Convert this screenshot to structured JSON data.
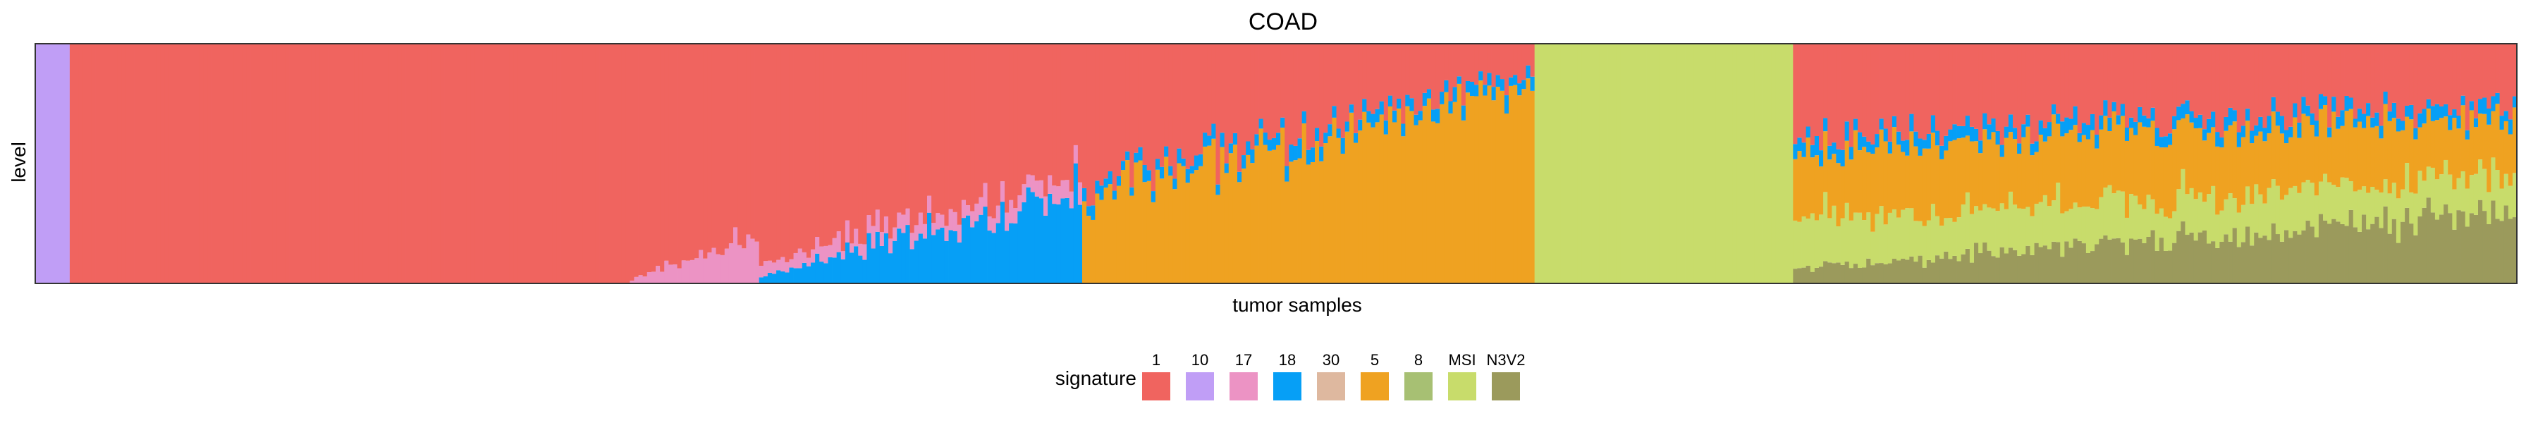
{
  "chart_data": {
    "type": "bar",
    "stacked": true,
    "normalized": true,
    "title": "COAD",
    "xlabel": "tumor samples",
    "ylabel": "level",
    "ylim": [
      0,
      1
    ],
    "grid": false,
    "x_tick_labels_shown": false,
    "legend": {
      "title": "signature",
      "placement": "bottom",
      "entries": [
        {
          "name": "1",
          "color": "#F0645F"
        },
        {
          "name": "10",
          "color": "#C09EF6"
        },
        {
          "name": "17",
          "color": "#EC93C4"
        },
        {
          "name": "18",
          "color": "#069FF6"
        },
        {
          "name": "30",
          "color": "#DEB89F"
        },
        {
          "name": "5",
          "color": "#EFA221"
        },
        {
          "name": "8",
          "color": "#A7C073"
        },
        {
          "name": "MSI",
          "color": "#C8DC6B"
        },
        {
          "name": "N3V2",
          "color": "#9B9A5C"
        }
      ]
    },
    "sample_count_estimate": 580,
    "groups": [
      {
        "dominant_signature": "10",
        "samples": 8,
        "composition": [
          {
            "signature": "10",
            "level": 1.0
          }
        ]
      },
      {
        "dominant_signature": "1",
        "samples": 130,
        "composition": [
          {
            "signature": "1",
            "level": 1.0
          }
        ]
      },
      {
        "dominant_signature": "1",
        "samples": 30,
        "secondary_signature": "17",
        "composition_start": [
          {
            "signature": "17",
            "level": 0.02
          },
          {
            "signature": "1",
            "level": 0.98
          }
        ],
        "composition_end": [
          {
            "signature": "17",
            "level": 0.18
          },
          {
            "signature": "1",
            "level": 0.82
          }
        ]
      },
      {
        "dominant_signature": "1",
        "samples": 75,
        "secondary_signature": "18",
        "composition_start": [
          {
            "signature": "18",
            "level": 0.03
          },
          {
            "signature": "17",
            "level": 0.05
          },
          {
            "signature": "1",
            "level": 0.92
          }
        ],
        "composition_end": [
          {
            "signature": "18",
            "level": 0.38
          },
          {
            "signature": "17",
            "level": 0.08
          },
          {
            "signature": "1",
            "level": 0.54
          }
        ]
      },
      {
        "dominant_signature": "1",
        "samples": 105,
        "secondary_signature": "5",
        "composition_start": [
          {
            "signature": "5",
            "level": 0.35
          },
          {
            "signature": "18",
            "level": 0.05
          },
          {
            "signature": "1",
            "level": 0.6
          }
        ],
        "composition_end": [
          {
            "signature": "5",
            "level": 0.82
          },
          {
            "signature": "18",
            "level": 0.05
          },
          {
            "signature": "1",
            "level": 0.13
          }
        ]
      },
      {
        "dominant_signature": "MSI",
        "samples": 60,
        "composition": [
          {
            "signature": "MSI",
            "level": 1.0
          }
        ]
      },
      {
        "dominant_signature": "mixed",
        "samples": 168,
        "secondary_signature": "N3V2",
        "composition_start": [
          {
            "signature": "N3V2",
            "level": 0.06
          },
          {
            "signature": "MSI",
            "level": 0.2
          },
          {
            "signature": "5",
            "level": 0.3
          },
          {
            "signature": "18",
            "level": 0.06
          },
          {
            "signature": "1",
            "level": 0.38
          }
        ],
        "composition_end": [
          {
            "signature": "N3V2",
            "level": 0.3
          },
          {
            "signature": "MSI",
            "level": 0.15
          },
          {
            "signature": "5",
            "level": 0.25
          },
          {
            "signature": "18",
            "level": 0.05
          },
          {
            "signature": "1",
            "level": 0.25
          }
        ]
      }
    ]
  }
}
